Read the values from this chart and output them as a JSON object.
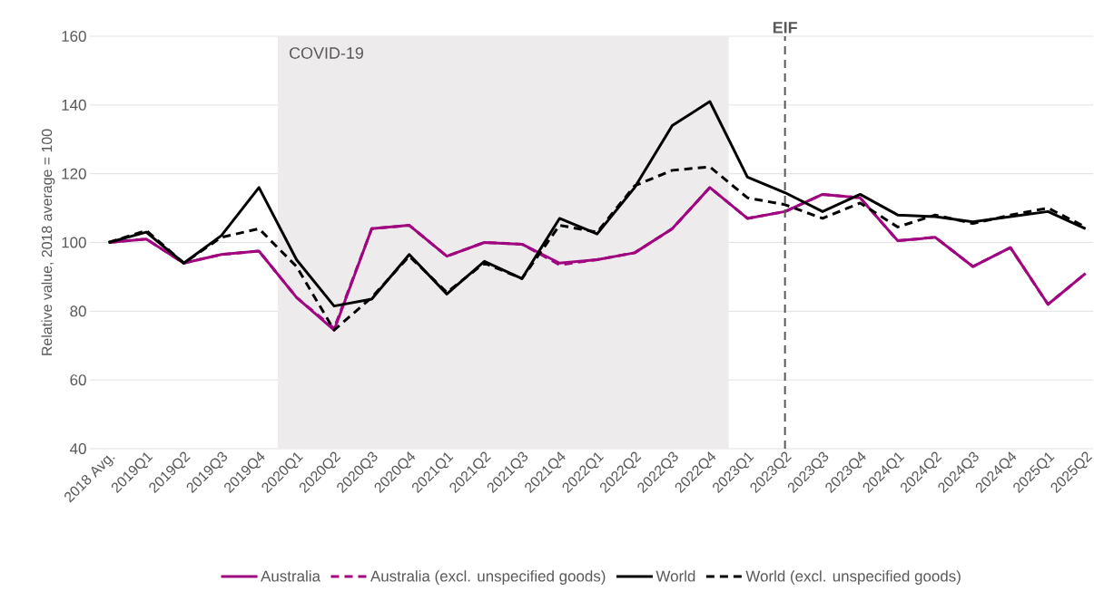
{
  "chart_data": {
    "type": "line",
    "ylabel": "Relative value, 2018 average = 100",
    "categories": [
      "2018 Avg.",
      "2019Q1",
      "2019Q2",
      "2019Q3",
      "2019Q4",
      "2020Q1",
      "2020Q2",
      "2020Q3",
      "2020Q4",
      "2021Q1",
      "2021Q2",
      "2021Q3",
      "2021Q4",
      "2022Q1",
      "2022Q2",
      "2022Q3",
      "2022Q4",
      "2023Q1",
      "2023Q2",
      "2023Q3",
      "2023Q4",
      "2024Q1",
      "2024Q2",
      "2024Q3",
      "2024Q4",
      "2025Q1",
      "2025Q2"
    ],
    "series": [
      {
        "name": "Australia",
        "color": "#a0067f",
        "line_style": "solid",
        "values": [
          100,
          101,
          94,
          96.5,
          97.5,
          84,
          74.5,
          104,
          105,
          96,
          100,
          99.5,
          94,
          95,
          97,
          104,
          116,
          107,
          109,
          114,
          113,
          100.5,
          101.5,
          93,
          98.5,
          82,
          91
        ]
      },
      {
        "name": "Australia (excl. unspecified goods)",
        "color": "#a0067f",
        "line_style": "dashed",
        "values": [
          100,
          101,
          94,
          96.5,
          97.5,
          84,
          75,
          104,
          105,
          96,
          100,
          99.5,
          93.5,
          95,
          97,
          104,
          116,
          107,
          109,
          114,
          113,
          100.5,
          101.5,
          93,
          98.5,
          82,
          91
        ]
      },
      {
        "name": "World",
        "color": "#000000",
        "line_style": "solid",
        "values": [
          100,
          103,
          94,
          102,
          116,
          95,
          81.5,
          83.5,
          96.5,
          85,
          94.5,
          89.5,
          107,
          102.5,
          116,
          134,
          141,
          119,
          114.5,
          109,
          114,
          108,
          107.5,
          106,
          107.5,
          109,
          104
        ]
      },
      {
        "name": "World (excl. unspecified goods)",
        "color": "#000000",
        "line_style": "dashed",
        "values": [
          100,
          103.5,
          94,
          101.5,
          104,
          93,
          74.5,
          84,
          96,
          85.5,
          94,
          89.5,
          105,
          103,
          116.5,
          121,
          122,
          113,
          111,
          107,
          111.5,
          104.5,
          108,
          105.5,
          108,
          110,
          104.5
        ]
      }
    ],
    "ylim": [
      40,
      160
    ],
    "yticks": [
      40,
      60,
      80,
      100,
      120,
      140,
      160
    ],
    "grid": "y",
    "legend": "bottom",
    "marker": "none",
    "bands": [
      {
        "axis": "x",
        "from": "2020Q1",
        "to": "2022Q4",
        "label": "COVID-19",
        "color": "#edebec"
      }
    ],
    "ref_lines": [
      {
        "axis": "x",
        "value": "2023Q2",
        "label": "EIF",
        "color": "#595959",
        "line_style": "dashed"
      }
    ]
  }
}
